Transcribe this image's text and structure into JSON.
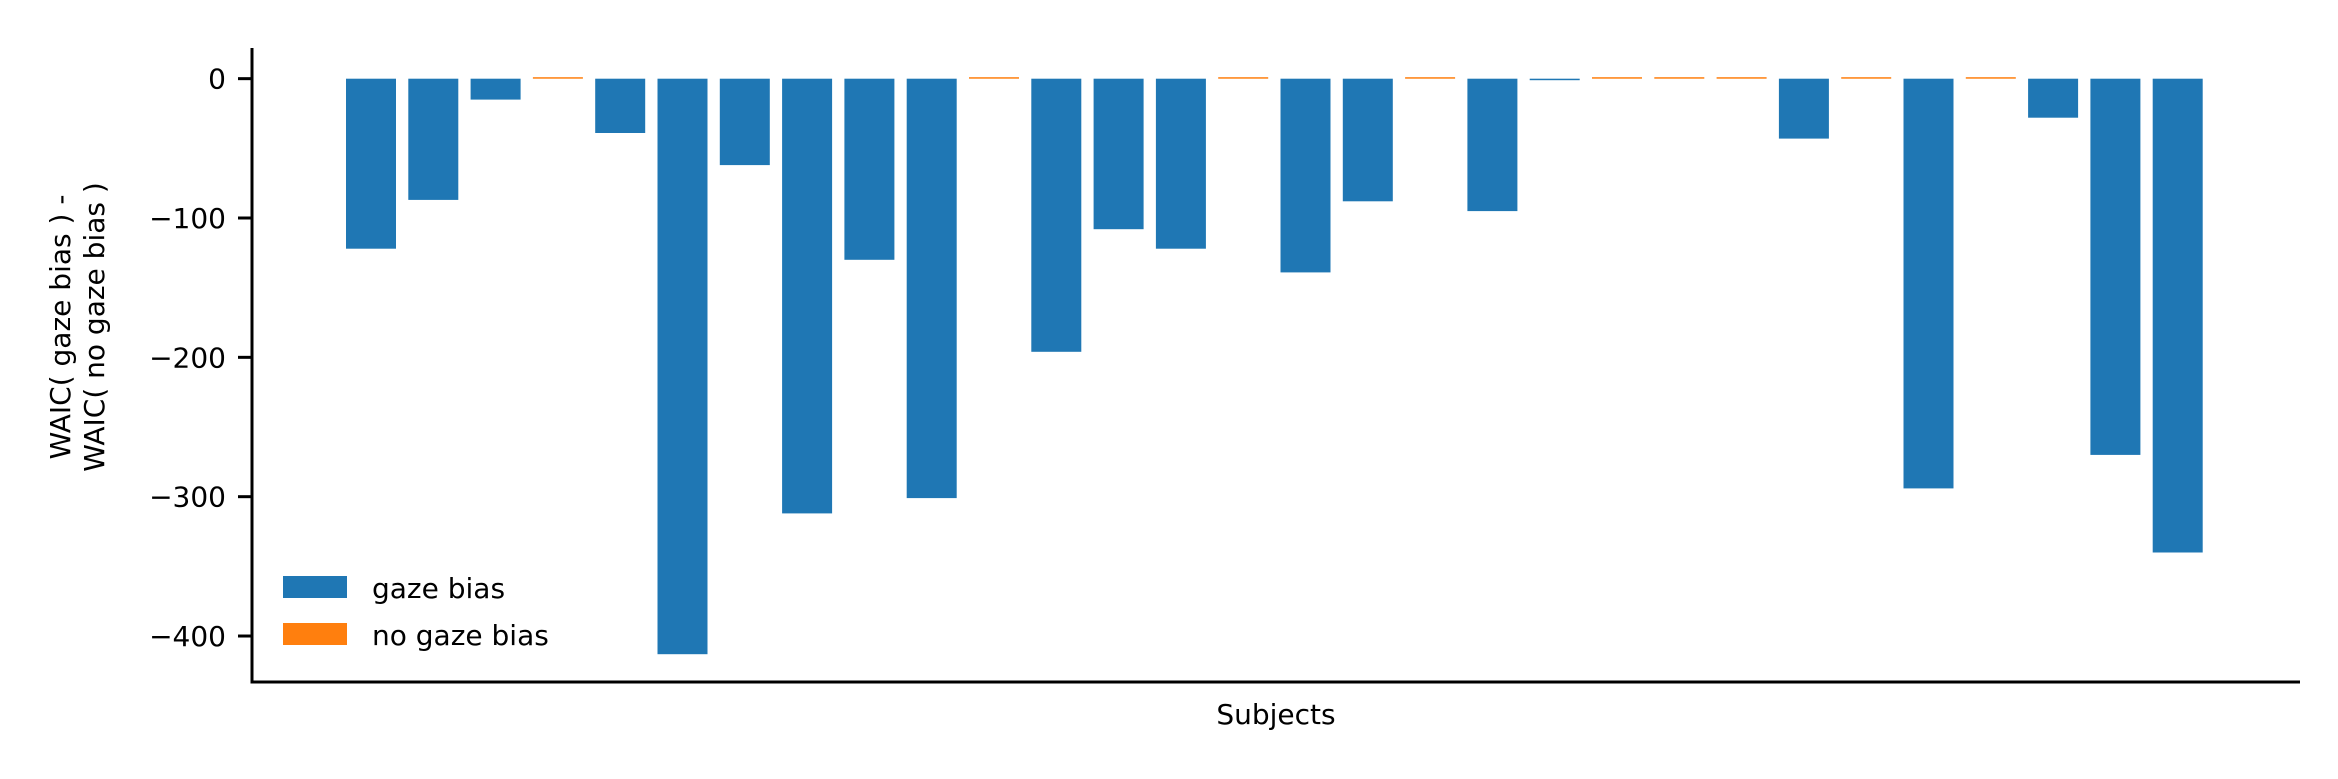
{
  "colors": {
    "gaze_bias": "#1f77b4",
    "no_gaze_bias": "#ff7f0e",
    "axis": "#000000"
  },
  "chart_data": {
    "type": "bar",
    "title": "",
    "xlabel": "Subjects",
    "ylabel_lines": [
      "WAIC( gaze bias ) -",
      "WAIC( no gaze bias )"
    ],
    "ylim": [
      -433,
      22
    ],
    "yticks": [
      0,
      -100,
      -200,
      -300,
      -400
    ],
    "ytick_labels": [
      "0",
      "−100",
      "−200",
      "−300",
      "−400"
    ],
    "grid": false,
    "legend_position": "bottom-left",
    "series": [
      {
        "name": "gaze bias",
        "color_key": "gaze_bias"
      },
      {
        "name": "no gaze bias",
        "color_key": "no_gaze_bias"
      }
    ],
    "values": [
      -122,
      -87,
      -15,
      1,
      -39,
      -413,
      -62,
      -312,
      -130,
      -301,
      1,
      -196,
      -108,
      -122,
      1,
      -139,
      -88,
      1,
      -95,
      -1,
      1,
      0.5,
      1,
      -43,
      1,
      -294,
      0.5,
      -28,
      -270,
      -340
    ],
    "preferred_model": [
      "gaze bias",
      "gaze bias",
      "gaze bias",
      "no gaze bias",
      "gaze bias",
      "gaze bias",
      "gaze bias",
      "gaze bias",
      "gaze bias",
      "gaze bias",
      "no gaze bias",
      "gaze bias",
      "gaze bias",
      "gaze bias",
      "no gaze bias",
      "gaze bias",
      "gaze bias",
      "no gaze bias",
      "gaze bias",
      "gaze bias",
      "no gaze bias",
      "no gaze bias",
      "no gaze bias",
      "gaze bias",
      "no gaze bias",
      "gaze bias",
      "no gaze bias",
      "gaze bias",
      "gaze bias",
      "gaze bias"
    ]
  }
}
